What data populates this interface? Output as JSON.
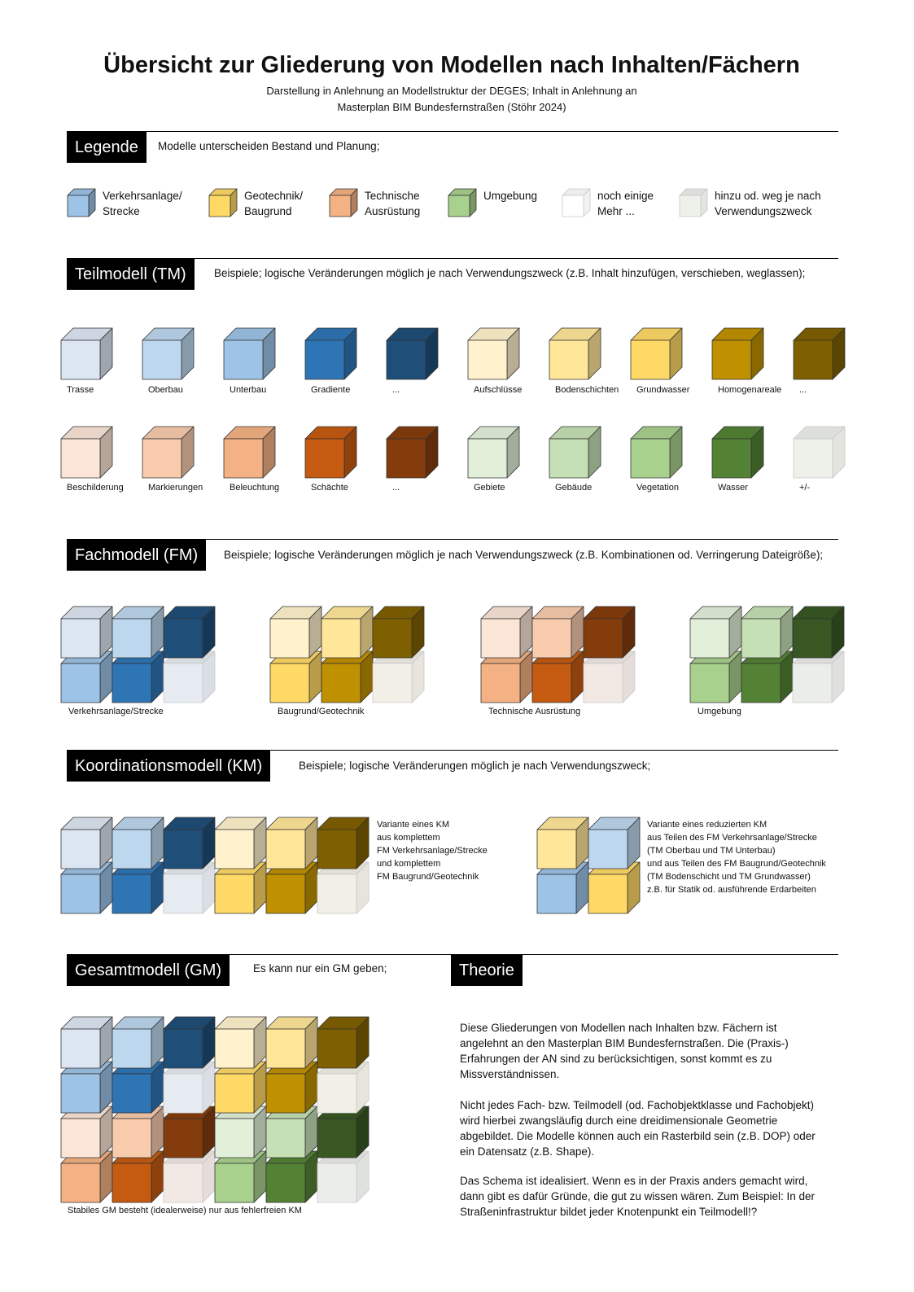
{
  "title": "Übersicht zur Gliederung von Modellen nach Inhalten/Fächern",
  "subtitle_1": "Darstellung in Anlehnung an Modellstruktur  der DEGES; Inhalt in Anlehnung  an",
  "subtitle_2": "Masterplan BIM Bundesfernstraßen (Stöhr 2024)",
  "colors": {
    "b1": "#dce6f2",
    "b2": "#bdd7ee",
    "b3": "#9dc3e6",
    "b4": "#2e75b6",
    "b5": "#1f4e79",
    "y1": "#fff2cc",
    "y2": "#ffe699",
    "y3": "#ffd966",
    "y4": "#bf9000",
    "y5": "#7f6000",
    "o1": "#fbe5d6",
    "o2": "#f8cbad",
    "o3": "#f4b183",
    "o4": "#c55a11",
    "o5": "#843c0c",
    "g1": "#e2f0d9",
    "g2": "#c5e0b4",
    "g3": "#a9d18e",
    "g4": "#548235",
    "g5": "#385723",
    "w": "#ffffff",
    "gl": "#eef0ea",
    "fb": "#e6ebf1",
    "fy": "#f2f0e6",
    "fo": "#f2e9e5",
    "fg": "#ebedea"
  },
  "legend": {
    "header": "Legende",
    "desc": "Modelle unterscheiden  Bestand und Planung;",
    "items": [
      {
        "label": "Verkehrsanlage/\nStrecke",
        "color": "b3"
      },
      {
        "label": "Geotechnik/\nBaugrund",
        "color": "y3"
      },
      {
        "label": "Technische\nAusrüstung",
        "color": "o3"
      },
      {
        "label": "Umgebung",
        "color": "g3"
      },
      {
        "label": "noch einige\nMehr ...",
        "color": "w"
      },
      {
        "label": "hinzu od. weg je nach\nVerwendungszweck",
        "color": "gl"
      }
    ]
  },
  "tm": {
    "header": "Teilmodell (TM)",
    "desc": "Beispiele; logische Veränderungen  möglich je nach Verwendungszweck  (z.B. Inhalt hinzufügen,  verschieben, weglassen);",
    "row1": [
      {
        "label": "Trasse",
        "color": "b1"
      },
      {
        "label": "Oberbau",
        "color": "b2"
      },
      {
        "label": "Unterbau",
        "color": "b3"
      },
      {
        "label": "Gradiente",
        "color": "b4"
      },
      {
        "label": "...",
        "color": "b5"
      },
      {
        "label": "Aufschlüsse",
        "color": "y1"
      },
      {
        "label": "Bodenschichten",
        "color": "y2"
      },
      {
        "label": "Grundwasser",
        "color": "y3"
      },
      {
        "label": "Homogenareale",
        "color": "y4"
      },
      {
        "label": "...",
        "color": "y5"
      }
    ],
    "row2": [
      {
        "label": "Beschilderung",
        "color": "o1"
      },
      {
        "label": "Markierungen",
        "color": "o2"
      },
      {
        "label": "Beleuchtung",
        "color": "o3"
      },
      {
        "label": "Schächte",
        "color": "o4"
      },
      {
        "label": "...",
        "color": "o5"
      },
      {
        "label": "Gebiete",
        "color": "g1"
      },
      {
        "label": "Gebäude",
        "color": "g2"
      },
      {
        "label": "Vegetation",
        "color": "g3"
      },
      {
        "label": "Wasser",
        "color": "g4"
      },
      {
        "label": "+/-",
        "color": "gl"
      }
    ]
  },
  "fm": {
    "header": "Fachmodell (FM)",
    "desc": "Beispiele; logische Veränderungen  möglich je nach Verwendungszweck  (z.B. Kombinationen  od.  Verringerung  Dateigröße);",
    "groups": [
      {
        "label": "Verkehrsanlage/Strecke",
        "top": [
          "b1",
          "b2",
          "b5"
        ],
        "bottom": [
          "b3",
          "b4",
          "fb"
        ]
      },
      {
        "label": "Baugrund/Geotechnik",
        "top": [
          "y1",
          "y2",
          "y5"
        ],
        "bottom": [
          "y3",
          "y4",
          "fy"
        ]
      },
      {
        "label": "Technische Ausrüstung",
        "top": [
          "o1",
          "o2",
          "o5"
        ],
        "bottom": [
          "o3",
          "o4",
          "fo"
        ]
      },
      {
        "label": "Umgebung",
        "top": [
          "g1",
          "g2",
          "g5"
        ],
        "bottom": [
          "g3",
          "g4",
          "fg"
        ]
      }
    ]
  },
  "km": {
    "header": "Koordinationsmodell (KM)",
    "desc": "Beispiele; logische Veränderungen  möglich je nach Verwendungszweck;",
    "variant1": {
      "top": [
        "b1",
        "b2",
        "b5",
        "y1",
        "y2",
        "y5"
      ],
      "bottom": [
        "b3",
        "b4",
        "fb",
        "y3",
        "y4",
        "fy"
      ],
      "note": "Variante eines KM\naus komplettem\nFM Verkehrsanlage/Strecke\nund komplettem\nFM Baugrund/Geotechnik"
    },
    "variant2": {
      "top": [
        "y2",
        "b2"
      ],
      "bottom": [
        "b3",
        "y3"
      ],
      "note": "Variante eines reduzierten  KM\naus Teilen des FM Verkehrsanlage/Strecke\n(TM Oberbau und TM Unterbau)\nund aus Teilen des FM Baugrund/Geotechnik\n(TM Bodenschicht und TM Grundwasser)\nz.B. für Statik od. ausführende Erdarbeiten"
    }
  },
  "gm": {
    "header": "Gesamtmodell (GM)",
    "desc": "Es kann nur ein GM geben;",
    "rows": [
      [
        "b1",
        "b2",
        "b5",
        "y1",
        "y2",
        "y5"
      ],
      [
        "b3",
        "b4",
        "fb",
        "y3",
        "y4",
        "fy"
      ],
      [
        "o1",
        "o2",
        "o5",
        "g1",
        "g2",
        "g5"
      ],
      [
        "o3",
        "o4",
        "fo",
        "g3",
        "g4",
        "fg"
      ]
    ],
    "caption": "Stabiles GM besteht  (idealerweise) nur aus fehlerfreien KM"
  },
  "theory": {
    "header": "Theorie",
    "p1": "Diese Gliederungen von Modellen nach Inhalten bzw. Fächern ist\nangelehnt an den Masterplan BIM Bundesfernstraßen. Die (Praxis-)\nErfahrungen der AN sind zu berücksichtigen, sonst kommt  es zu\nMissverständnissen.",
    "p2": "Nicht jedes Fach- bzw. Teilmodell (od.  Fachobjektklasse und Fachobjekt)\nwird hierbei zwangsläufig durch eine dreidimensionale Geometrie\nabgebildet. Die Modelle können  auch ein Rasterbild sein (z.B. DOP) oder\nein Datensatz (z.B. Shape).",
    "p3": "Das Schema ist idealisiert. Wenn es in der Praxis anders gemacht wird,\ndann gibt es dafür Gründe, die gut zu wissen wären. Zum Beispiel: In der\nStraßeninfrastruktur bildet jeder Knotenpunkt  ein Teilmodell!?"
  }
}
